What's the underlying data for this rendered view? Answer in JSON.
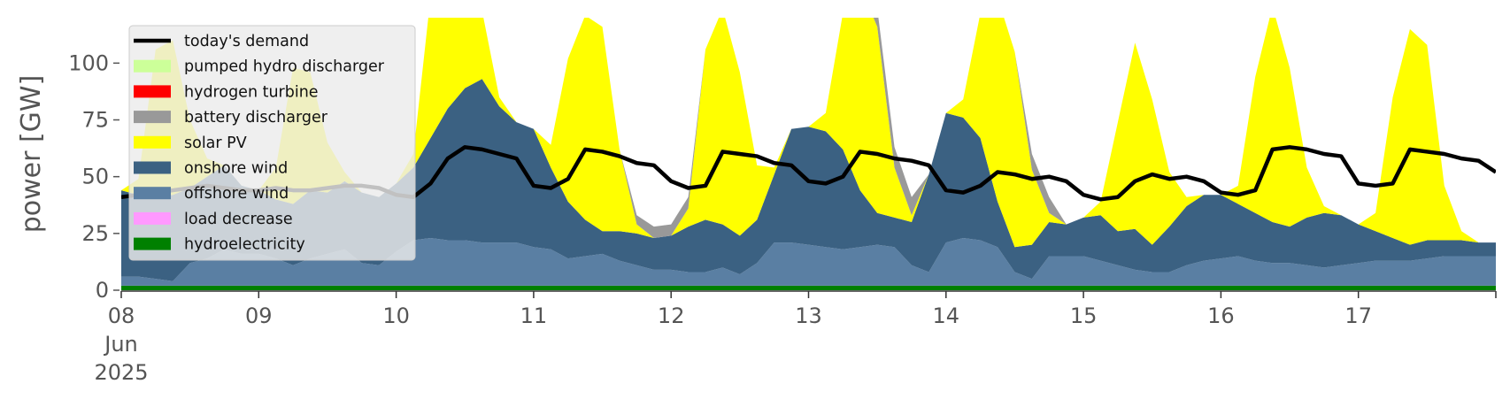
{
  "chart_data": {
    "type": "area",
    "title": "",
    "xlabel": "",
    "ylabel": "power [GW]",
    "ylim": [
      0,
      120
    ],
    "yticks": [
      0,
      25,
      50,
      75,
      100
    ],
    "xlim": [
      "2025-06-08 00:00",
      "2025-06-18 00:00"
    ],
    "x_tick_labels": [
      "08\nJun\n2025",
      "09",
      "10",
      "11",
      "12",
      "13",
      "14",
      "15",
      "16",
      "17"
    ],
    "grid": false,
    "legend_position": "upper-left",
    "x": [
      "2025-06-08 00:00",
      "2025-06-08 03:00",
      "2025-06-08 06:00",
      "2025-06-08 09:00",
      "2025-06-08 12:00",
      "2025-06-08 15:00",
      "2025-06-08 18:00",
      "2025-06-08 21:00",
      "2025-06-09 00:00",
      "2025-06-09 03:00",
      "2025-06-09 06:00",
      "2025-06-09 09:00",
      "2025-06-09 12:00",
      "2025-06-09 15:00",
      "2025-06-09 18:00",
      "2025-06-09 21:00",
      "2025-06-10 00:00",
      "2025-06-10 03:00",
      "2025-06-10 06:00",
      "2025-06-10 09:00",
      "2025-06-10 12:00",
      "2025-06-10 15:00",
      "2025-06-10 18:00",
      "2025-06-10 21:00",
      "2025-06-11 00:00",
      "2025-06-11 03:00",
      "2025-06-11 06:00",
      "2025-06-11 09:00",
      "2025-06-11 12:00",
      "2025-06-11 15:00",
      "2025-06-11 18:00",
      "2025-06-11 21:00",
      "2025-06-12 00:00",
      "2025-06-12 03:00",
      "2025-06-12 06:00",
      "2025-06-12 09:00",
      "2025-06-12 12:00",
      "2025-06-12 15:00",
      "2025-06-12 18:00",
      "2025-06-12 21:00",
      "2025-06-13 00:00",
      "2025-06-13 03:00",
      "2025-06-13 06:00",
      "2025-06-13 09:00",
      "2025-06-13 12:00",
      "2025-06-13 15:00",
      "2025-06-13 18:00",
      "2025-06-13 21:00",
      "2025-06-14 00:00",
      "2025-06-14 03:00",
      "2025-06-14 06:00",
      "2025-06-14 09:00",
      "2025-06-14 12:00",
      "2025-06-14 15:00",
      "2025-06-14 18:00",
      "2025-06-14 21:00",
      "2025-06-15 00:00",
      "2025-06-15 03:00",
      "2025-06-15 06:00",
      "2025-06-15 09:00",
      "2025-06-15 12:00",
      "2025-06-15 15:00",
      "2025-06-15 18:00",
      "2025-06-15 21:00",
      "2025-06-16 00:00",
      "2025-06-16 03:00",
      "2025-06-16 06:00",
      "2025-06-16 09:00",
      "2025-06-16 12:00",
      "2025-06-16 15:00",
      "2025-06-16 18:00",
      "2025-06-16 21:00",
      "2025-06-17 00:00",
      "2025-06-17 03:00",
      "2025-06-17 06:00",
      "2025-06-17 09:00",
      "2025-06-17 12:00",
      "2025-06-17 15:00",
      "2025-06-17 18:00",
      "2025-06-17 21:00",
      "2025-06-18 00:00"
    ],
    "stack_order": [
      "hydroelectricity",
      "load decrease",
      "offshore wind",
      "onshore wind",
      "solar PV",
      "battery discharger",
      "hydrogen turbine",
      "pumped hydro discharger"
    ],
    "series": [
      {
        "name": "hydroelectricity",
        "color": "#008000",
        "values": [
          2,
          2,
          2,
          2,
          2,
          2,
          2,
          2,
          2,
          2,
          2,
          2,
          2,
          2,
          2,
          2,
          2,
          2,
          2,
          2,
          2,
          2,
          2,
          2,
          2,
          2,
          2,
          2,
          2,
          2,
          2,
          2,
          2,
          2,
          2,
          2,
          2,
          2,
          2,
          2,
          2,
          2,
          2,
          2,
          2,
          2,
          2,
          2,
          2,
          2,
          2,
          2,
          2,
          2,
          2,
          2,
          2,
          2,
          2,
          2,
          2,
          2,
          2,
          2,
          2,
          2,
          2,
          2,
          2,
          2,
          2,
          2,
          2,
          2,
          2,
          2,
          2,
          2,
          2,
          2,
          2
        ]
      },
      {
        "name": "load decrease",
        "color": "#ff99ff",
        "values": [
          0,
          0,
          0,
          0,
          0,
          0,
          0,
          0,
          0,
          0,
          0,
          0,
          0,
          0,
          0,
          0,
          0,
          0,
          0,
          0,
          0,
          0,
          0,
          0,
          0,
          0,
          0,
          0,
          0,
          0,
          0,
          0,
          0,
          0,
          0,
          0,
          0,
          0,
          0,
          0,
          0,
          0,
          0,
          0,
          0,
          0,
          0,
          0,
          0,
          0,
          0,
          0,
          0,
          0,
          0,
          0,
          0,
          0,
          0,
          0,
          0,
          0,
          0,
          0,
          0,
          0,
          0,
          0,
          0,
          0,
          0,
          0,
          0,
          0,
          0,
          0,
          0,
          0,
          0,
          0,
          0
        ]
      },
      {
        "name": "offshore wind",
        "color": "#5a7fa3",
        "values": [
          4,
          4,
          3,
          2,
          10,
          12,
          16,
          14,
          14,
          12,
          9,
          12,
          14,
          16,
          10,
          9,
          15,
          20,
          21,
          20,
          20,
          19,
          19,
          19,
          17,
          16,
          12,
          13,
          14,
          11,
          9,
          7,
          7,
          6,
          6,
          8,
          5,
          10,
          19,
          19,
          18,
          17,
          16,
          17,
          18,
          17,
          9,
          6,
          19,
          21,
          20,
          17,
          6,
          3,
          13,
          13,
          13,
          11,
          9,
          7,
          6,
          6,
          9,
          11,
          12,
          13,
          11,
          10,
          10,
          9,
          8,
          9,
          10,
          11,
          11,
          11,
          12,
          13,
          13,
          13,
          13
        ]
      },
      {
        "name": "onshore wind",
        "color": "#3b6182",
        "values": [
          38,
          36,
          36,
          38,
          33,
          36,
          37,
          30,
          28,
          26,
          27,
          30,
          27,
          30,
          31,
          30,
          30,
          32,
          44,
          58,
          67,
          72,
          60,
          53,
          52,
          36,
          25,
          16,
          10,
          13,
          14,
          14,
          15,
          20,
          23,
          19,
          17,
          19,
          30,
          50,
          52,
          51,
          44,
          25,
          14,
          13,
          19,
          43,
          57,
          53,
          45,
          20,
          11,
          15,
          15,
          14,
          17,
          20,
          15,
          18,
          12,
          20,
          26,
          29,
          28,
          23,
          21,
          18,
          16,
          21,
          24,
          22,
          17,
          13,
          10,
          7,
          8,
          7,
          7,
          6,
          6
        ]
      },
      {
        "name": "solar PV",
        "color": "#ffff00",
        "values": [
          0,
          7,
          65,
          68,
          30,
          8,
          0,
          0,
          0,
          14,
          60,
          52,
          22,
          4,
          0,
          0,
          0,
          6,
          62,
          75,
          60,
          30,
          4,
          0,
          0,
          10,
          63,
          90,
          90,
          36,
          4,
          0,
          0,
          8,
          75,
          95,
          72,
          24,
          3,
          0,
          0,
          8,
          60,
          90,
          82,
          22,
          3,
          0,
          0,
          8,
          55,
          90,
          86,
          33,
          4,
          0,
          0,
          6,
          48,
          82,
          64,
          24,
          4,
          0,
          0,
          8,
          60,
          95,
          70,
          22,
          3,
          0,
          0,
          8,
          62,
          95,
          86,
          24,
          4,
          0,
          0
        ]
      },
      {
        "name": "battery discharger",
        "color": "#999999",
        "values": [
          0,
          0,
          0,
          0,
          0,
          0,
          0,
          0,
          0,
          0,
          0,
          0,
          0,
          0,
          0,
          0,
          0,
          0,
          0,
          0,
          0,
          0,
          0,
          0,
          0,
          0,
          0,
          0,
          0,
          0,
          4,
          5,
          5,
          5,
          0,
          0,
          0,
          0,
          0,
          0,
          0,
          0,
          0,
          0,
          8,
          9,
          8,
          0,
          0,
          0,
          0,
          0,
          0,
          7,
          7,
          0,
          0,
          0,
          0,
          0,
          0,
          0,
          0,
          0,
          0,
          0,
          0,
          0,
          0,
          0,
          0,
          0,
          0,
          0,
          0,
          0,
          0,
          0,
          0,
          0,
          0
        ]
      },
      {
        "name": "hydrogen turbine",
        "color": "#ff0000",
        "values": [
          0,
          0,
          0,
          0,
          0,
          0,
          0,
          0,
          0,
          0,
          0,
          0,
          0,
          0,
          0,
          0,
          0,
          0,
          0,
          0,
          0,
          0,
          0,
          0,
          0,
          0,
          0,
          0,
          0,
          0,
          0,
          0,
          0,
          0,
          0,
          0,
          0,
          0,
          0,
          0,
          0,
          0,
          0,
          0,
          0,
          0,
          0,
          0,
          0,
          0,
          0,
          0,
          0,
          0,
          0,
          0,
          0,
          0,
          0,
          0,
          0,
          0,
          0,
          0,
          0,
          0,
          0,
          0,
          0,
          0,
          0,
          0,
          0,
          0,
          0,
          0,
          0,
          0,
          0,
          0,
          0
        ]
      },
      {
        "name": "pumped hydro discharger",
        "color": "#ccff99",
        "values": [
          0,
          0,
          0,
          0,
          0,
          0,
          0,
          0,
          0,
          0,
          0,
          0,
          0,
          0,
          0,
          0,
          0,
          0,
          0,
          0,
          0,
          0,
          0,
          0,
          0,
          0,
          0,
          0,
          0,
          0,
          0,
          0,
          0,
          0,
          0,
          0,
          0,
          0,
          0,
          0,
          0,
          0,
          0,
          0,
          0,
          0,
          0,
          0,
          0,
          0,
          0,
          0,
          0,
          0,
          0,
          0,
          0,
          0,
          0,
          0,
          0,
          0,
          0,
          0,
          0,
          0,
          0,
          0,
          0,
          0,
          0,
          0,
          0,
          0,
          0,
          0,
          0,
          0,
          0,
          0,
          0
        ]
      }
    ],
    "demand": {
      "name": "today's demand",
      "color": "#000000",
      "values": [
        41,
        42,
        43,
        44,
        45,
        46,
        45,
        44,
        44,
        45,
        44,
        44,
        45,
        46,
        46,
        45,
        42,
        41,
        47,
        58,
        63,
        62,
        60,
        58,
        46,
        45,
        49,
        62,
        61,
        59,
        56,
        55,
        48,
        45,
        46,
        61,
        60,
        59,
        56,
        55,
        48,
        47,
        50,
        61,
        60,
        58,
        57,
        55,
        44,
        43,
        46,
        52,
        51,
        49,
        50,
        48,
        42,
        40,
        41,
        48,
        51,
        49,
        50,
        48,
        43,
        42,
        44,
        62,
        63,
        62,
        60,
        59,
        47,
        46,
        47,
        62,
        61,
        60,
        58,
        57,
        52
      ]
    },
    "legend": [
      {
        "label": "today's demand",
        "color": "#000000",
        "kind": "line"
      },
      {
        "label": "pumped hydro discharger",
        "color": "#ccff99",
        "kind": "patch"
      },
      {
        "label": "hydrogen turbine",
        "color": "#ff0000",
        "kind": "patch"
      },
      {
        "label": "battery discharger",
        "color": "#999999",
        "kind": "patch"
      },
      {
        "label": "solar PV",
        "color": "#ffff00",
        "kind": "patch"
      },
      {
        "label": "onshore wind",
        "color": "#3b6182",
        "kind": "patch"
      },
      {
        "label": "offshore wind",
        "color": "#5a7fa3",
        "kind": "patch"
      },
      {
        "label": "load decrease",
        "color": "#ff99ff",
        "kind": "patch"
      },
      {
        "label": "hydroelectricity",
        "color": "#008000",
        "kind": "patch"
      }
    ]
  }
}
